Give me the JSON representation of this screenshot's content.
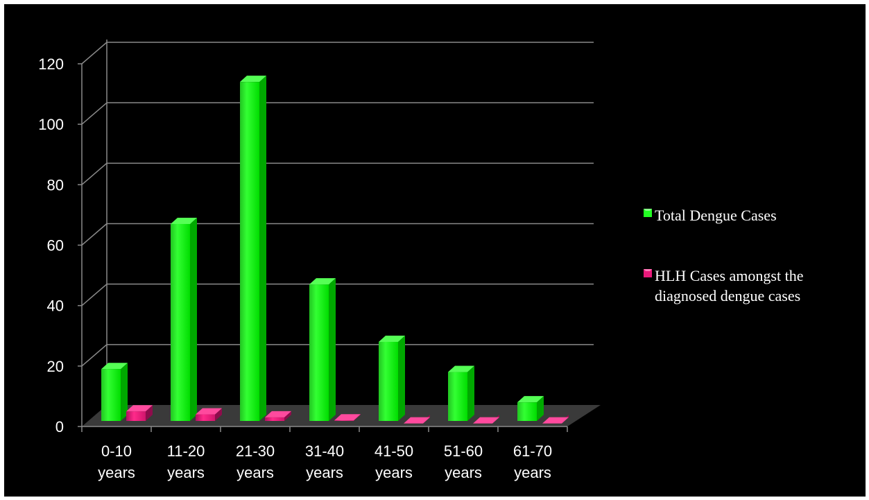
{
  "chart_data": {
    "type": "bar",
    "title": "",
    "xlabel": "",
    "ylabel": "",
    "categories": [
      [
        "0-10",
        "years"
      ],
      [
        "11-20",
        "years"
      ],
      [
        "21-30",
        "years"
      ],
      [
        "31-40",
        "years"
      ],
      [
        "41-50",
        "years"
      ],
      [
        "51-60",
        "years"
      ],
      [
        "61-70",
        "years"
      ]
    ],
    "series": [
      {
        "name": "Total Dengue Cases",
        "values": [
          19,
          67,
          114,
          47,
          28,
          18,
          8
        ],
        "color": "#00ee00"
      },
      {
        "name": "HLH Cases amongst the diagnosed dengue cases",
        "values": [
          5,
          4,
          3,
          2,
          1,
          1,
          1
        ],
        "color": "#e8197a"
      }
    ],
    "ylim": [
      0,
      120
    ],
    "yticks": [
      0,
      20,
      40,
      60,
      80,
      100,
      120
    ],
    "grid": true,
    "legend_position": "right",
    "background": "#000000"
  }
}
